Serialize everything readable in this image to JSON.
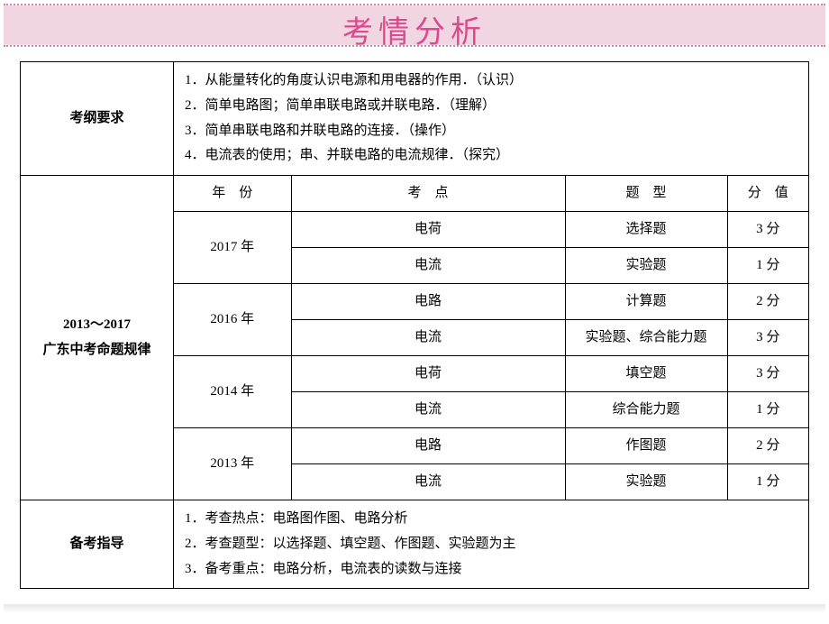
{
  "header": {
    "title": "考情分析",
    "title_color": "#d94b8a",
    "bg_color": "#f2d5e3",
    "border_color": "#c08aa8"
  },
  "section1": {
    "label": "考纲要求",
    "items": [
      "1．从能量转化的角度认识电源和用电器的作用．（认识）",
      "2．简单电路图；简单串联电路或并联电路．（理解）",
      "3．简单串联电路和并联电路的连接．（操作）",
      "4．电流表的使用；串、并联电路的电流规律．（探究）"
    ]
  },
  "section2": {
    "label_line1": "2013～2017",
    "label_line2": "广东中考命题规律",
    "headers": {
      "year": "年　份",
      "point": "考　点",
      "type": "题　型",
      "score": "分　值"
    },
    "rows": [
      {
        "year": "2017 年",
        "point": "电荷",
        "type": "选择题",
        "score": "3 分"
      },
      {
        "point": "电流",
        "type": "实验题",
        "score": "1 分"
      },
      {
        "year": "2016 年",
        "point": "电路",
        "type": "计算题",
        "score": "2 分"
      },
      {
        "point": "电流",
        "type": "实验题、综合能力题",
        "score": "3 分"
      },
      {
        "year": "2014 年",
        "point": "电荷",
        "type": "填空题",
        "score": "3 分"
      },
      {
        "point": "电流",
        "type": "综合能力题",
        "score": "1 分"
      },
      {
        "year": "2013 年",
        "point": "电路",
        "type": "作图题",
        "score": "2 分"
      },
      {
        "point": "电流",
        "type": "实验题",
        "score": "1 分"
      }
    ]
  },
  "section3": {
    "label": "备考指导",
    "items": [
      "1．考查热点：电路图作图、电路分析",
      "2．考查题型：以选择题、填空题、作图题、实验题为主",
      "3．备考重点：电路分析，电流表的读数与连接"
    ]
  },
  "style": {
    "font_main": "SimSun",
    "font_title": "SimHei",
    "border_color": "#000000",
    "body_font_size": 15,
    "title_font_size": 34
  }
}
